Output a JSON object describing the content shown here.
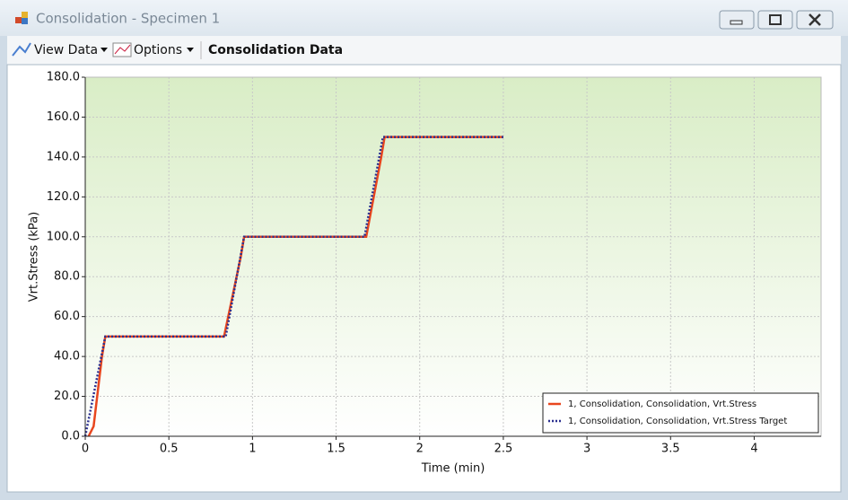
{
  "window": {
    "title": "Consolidation - Specimen 1"
  },
  "toolbar": {
    "items": [
      "View Data",
      "Options"
    ],
    "heading": "Consolidation Data"
  },
  "chart_data": {
    "type": "line",
    "x_label": "Time (min)",
    "y_label": "Vrt.Stress (kPa)",
    "xlim": [
      0,
      4.4
    ],
    "ylim": [
      0,
      180
    ],
    "xticks": [
      0,
      0.5,
      1,
      1.5,
      2,
      2.5,
      3,
      3.5,
      4
    ],
    "yticks": [
      {
        "value": 0,
        "label": "0.0"
      },
      {
        "value": 20,
        "label": "20.0"
      },
      {
        "value": 40,
        "label": "40.0"
      },
      {
        "value": 60,
        "label": "60.0"
      },
      {
        "value": 80,
        "label": "80.0"
      },
      {
        "value": 100,
        "label": "100.0"
      },
      {
        "value": 120,
        "label": "120.0"
      },
      {
        "value": 140,
        "label": "140.0"
      },
      {
        "value": 160,
        "label": "160.0"
      },
      {
        "value": 180,
        "label": "180.0"
      }
    ],
    "grid": true,
    "legend": "lower right",
    "series": [
      {
        "name": "1, Consolidation, Consolidation, Vrt.Stress",
        "color": "#e8461e",
        "style": "solid",
        "x": [
          0.02,
          0.05,
          0.1,
          0.12,
          0.83,
          0.93,
          0.95,
          1.68,
          1.77,
          1.79,
          2.5
        ],
        "values": [
          0,
          5,
          40,
          50,
          50,
          90,
          100,
          100,
          140,
          150,
          150
        ]
      },
      {
        "name": "1, Consolidation, Consolidation, Vrt.Stress Target",
        "color": "#2a2f8f",
        "style": "dotted",
        "x": [
          0,
          0.12,
          0.84,
          0.95,
          1.67,
          1.78,
          2.5
        ],
        "values": [
          0,
          50,
          50,
          100,
          100,
          150,
          150
        ]
      }
    ]
  }
}
